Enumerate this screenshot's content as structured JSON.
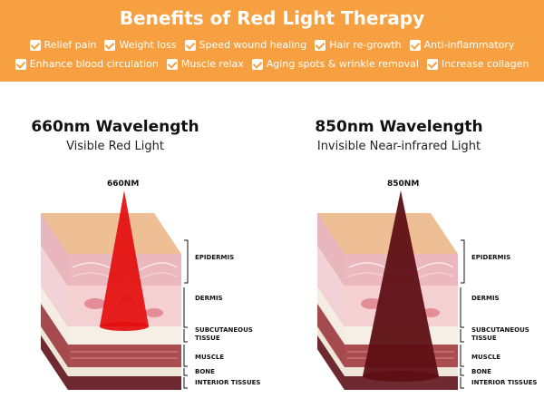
{
  "banner": {
    "title": "Benefits of Red Light Therapy",
    "row1": [
      "Relief pain",
      "Weight loss",
      "Speed wound healing",
      "Hair re-growth",
      "Anti-inflammatory"
    ],
    "row2": [
      "Enhance blood circulation",
      "Muscle relax",
      "Aging spots & wrinkle removal",
      "Increase collagen"
    ]
  },
  "panels": {
    "left": {
      "heading": "660nm Wavelength",
      "sub": "Visible Red Light",
      "nm": "660NM",
      "beam_color": "#e30d0d"
    },
    "right": {
      "heading": "850nm Wavelength",
      "sub": "Invisible Near-infrared Light",
      "nm": "850NM",
      "beam_color": "#5e0f14"
    }
  },
  "layers": {
    "epidermis": "EPIDERMIS",
    "dermis": "DERMIS",
    "subcutaneous": "SUBCUTANEOUS",
    "tissue": "TISSUE",
    "muscle": "MUSCLE",
    "bone": "BONE",
    "interior": "INTERIOR TISSUES"
  },
  "colors": {
    "banner": "#f7a042"
  }
}
